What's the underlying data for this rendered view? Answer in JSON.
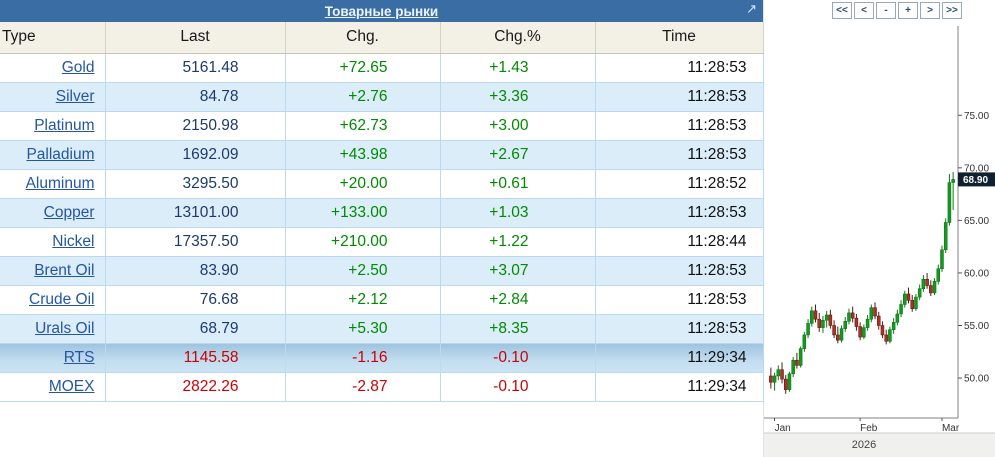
{
  "widget": {
    "title": "Товарные рынки",
    "expand_icon": "↗"
  },
  "table": {
    "columns": [
      "Type",
      "Last",
      "Chg.",
      "Chg.%",
      "Time"
    ],
    "rows": [
      {
        "name": "Gold",
        "last": "5161.48",
        "chg": "+72.65",
        "chg_pct": "+1.43",
        "time": "11:28:53"
      },
      {
        "name": "Silver",
        "last": "84.78",
        "chg": "+2.76",
        "chg_pct": "+3.36",
        "time": "11:28:53"
      },
      {
        "name": "Platinum",
        "last": "2150.98",
        "chg": "+62.73",
        "chg_pct": "+3.00",
        "time": "11:28:53"
      },
      {
        "name": "Palladium",
        "last": "1692.09",
        "chg": "+43.98",
        "chg_pct": "+2.67",
        "time": "11:28:53"
      },
      {
        "name": "Aluminum",
        "last": "3295.50",
        "chg": "+20.00",
        "chg_pct": "+0.61",
        "time": "11:28:52"
      },
      {
        "name": "Copper",
        "last": "13101.00",
        "chg": "+133.00",
        "chg_pct": "+1.03",
        "time": "11:28:53"
      },
      {
        "name": "Nickel",
        "last": "17357.50",
        "chg": "+210.00",
        "chg_pct": "+1.22",
        "time": "11:28:44"
      },
      {
        "name": "Brent Oil",
        "last": "83.90",
        "chg": "+2.50",
        "chg_pct": "+3.07",
        "time": "11:28:53"
      },
      {
        "name": "Crude Oil",
        "last": "76.68",
        "chg": "+2.12",
        "chg_pct": "+2.84",
        "time": "11:28:53"
      },
      {
        "name": "Urals Oil",
        "last": "68.79",
        "chg": "+5.30",
        "chg_pct": "+8.35",
        "time": "11:28:53"
      },
      {
        "name": "RTS",
        "last": "1145.58",
        "chg": "-1.16",
        "chg_pct": "-0.10",
        "time": "11:29:34",
        "group": "index",
        "highlight": true
      },
      {
        "name": "MOEX",
        "last": "2822.26",
        "chg": "-2.87",
        "chg_pct": "-0.10",
        "time": "11:29:34",
        "group": "index"
      }
    ]
  },
  "chart": {
    "nav_buttons": [
      "<<",
      "<",
      "-",
      "+",
      ">",
      ">>"
    ]
  },
  "chart_data": {
    "type": "candlestick",
    "title": "",
    "ylim": [
      46.2,
      81.4
    ],
    "yticks": [
      50,
      55,
      60,
      65,
      70,
      75
    ],
    "ytick_labels": [
      "50.00",
      "55.00",
      "60.00",
      "65.00",
      "70.00",
      "75.00"
    ],
    "xtick_labels": [
      "Jan",
      "Feb",
      "Mar"
    ],
    "xtick_positions": [
      1,
      24,
      46
    ],
    "year_label": "2026",
    "last_price": "68.90",
    "legend": "none",
    "grid": false,
    "candles": [
      [
        50.2,
        51.0,
        49.0,
        49.6
      ],
      [
        49.6,
        50.5,
        48.8,
        50.2
      ],
      [
        50.2,
        51.2,
        49.8,
        50.8
      ],
      [
        50.8,
        51.5,
        49.5,
        49.9
      ],
      [
        49.9,
        50.3,
        48.5,
        48.9
      ],
      [
        48.9,
        50.6,
        48.7,
        50.4
      ],
      [
        50.4,
        52.0,
        50.1,
        51.7
      ],
      [
        51.7,
        52.4,
        50.9,
        51.2
      ],
      [
        51.2,
        53.0,
        51.0,
        52.8
      ],
      [
        52.8,
        54.4,
        52.5,
        54.1
      ],
      [
        54.1,
        55.6,
        53.8,
        55.2
      ],
      [
        55.2,
        56.8,
        54.9,
        56.4
      ],
      [
        56.4,
        57.0,
        55.3,
        55.6
      ],
      [
        55.6,
        56.2,
        54.4,
        54.8
      ],
      [
        54.8,
        55.9,
        54.3,
        55.5
      ],
      [
        55.5,
        56.4,
        54.8,
        56.0
      ],
      [
        56.0,
        56.5,
        54.7,
        55.0
      ],
      [
        55.0,
        55.5,
        53.8,
        54.1
      ],
      [
        54.1,
        54.9,
        53.3,
        53.6
      ],
      [
        53.6,
        55.0,
        53.4,
        54.7
      ],
      [
        54.7,
        55.8,
        54.4,
        55.4
      ],
      [
        55.4,
        56.6,
        55.1,
        56.2
      ],
      [
        56.2,
        56.8,
        55.3,
        55.7
      ],
      [
        55.7,
        56.1,
        54.5,
        54.9
      ],
      [
        54.9,
        55.3,
        53.6,
        53.9
      ],
      [
        53.9,
        55.1,
        53.7,
        54.8
      ],
      [
        54.8,
        56.0,
        54.5,
        55.6
      ],
      [
        55.6,
        57.0,
        55.3,
        56.7
      ],
      [
        56.7,
        57.2,
        55.6,
        55.9
      ],
      [
        55.9,
        56.3,
        54.6,
        55.0
      ],
      [
        55.0,
        55.4,
        53.8,
        54.1
      ],
      [
        54.1,
        54.6,
        53.2,
        53.5
      ],
      [
        53.5,
        54.9,
        53.3,
        54.6
      ],
      [
        54.6,
        55.7,
        54.2,
        55.3
      ],
      [
        55.3,
        56.5,
        55.0,
        56.1
      ],
      [
        56.1,
        57.4,
        55.8,
        57.0
      ],
      [
        57.0,
        58.3,
        56.7,
        58.0
      ],
      [
        58.0,
        58.6,
        57.1,
        57.4
      ],
      [
        57.4,
        57.9,
        56.3,
        56.6
      ],
      [
        56.6,
        58.0,
        56.4,
        57.7
      ],
      [
        57.7,
        58.9,
        57.4,
        58.5
      ],
      [
        58.5,
        59.8,
        58.2,
        59.4
      ],
      [
        59.4,
        60.0,
        58.5,
        58.8
      ],
      [
        58.8,
        59.3,
        57.8,
        58.1
      ],
      [
        58.1,
        59.5,
        57.9,
        59.2
      ],
      [
        59.2,
        60.8,
        58.9,
        60.4
      ],
      [
        60.4,
        62.6,
        60.1,
        62.2
      ],
      [
        62.2,
        65.2,
        61.9,
        64.8
      ],
      [
        64.8,
        69.4,
        64.5,
        68.6
      ],
      [
        68.6,
        69.6,
        66.0,
        68.9
      ]
    ]
  },
  "colors": {
    "title_bar": "#3b6da5",
    "header_bg": "#f3f0e6",
    "row_alt": "#daedf9",
    "positive": "#008a00",
    "negative": "#cc0000",
    "link": "#2456a4",
    "last_value": "#1d3a6e",
    "candle_up": "#149a1e",
    "candle_down": "#b03024",
    "price_tag_bg": "#10202e"
  }
}
